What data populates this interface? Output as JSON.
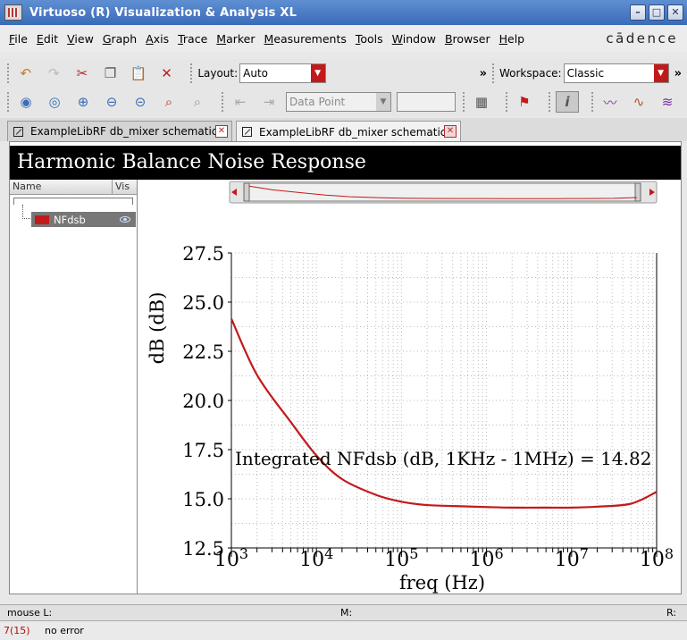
{
  "window": {
    "title": "Virtuoso (R) Visualization & Analysis XL",
    "brand": "cādence"
  },
  "menu": [
    "File",
    "Edit",
    "View",
    "Graph",
    "Axis",
    "Trace",
    "Marker",
    "Measurements",
    "Tools",
    "Window",
    "Browser",
    "Help"
  ],
  "toolbar1": {
    "layout_label": "Layout:",
    "layout_value": "Auto",
    "workspace_label": "Workspace:",
    "workspace_value": "Classic",
    "more_glyph": "»"
  },
  "toolbar2": {
    "marker_type_value": "Data Point"
  },
  "tabs": [
    {
      "label": "ExampleLibRF db_mixer schematic",
      "active": false
    },
    {
      "label": "ExampleLibRF db_mixer schematic",
      "active": true
    }
  ],
  "graph": {
    "title": "Harmonic Balance Noise Response",
    "legend_headers": {
      "name": "Name",
      "vis": "Vis"
    },
    "annotation": "Integrated NFdsb (dB, 1KHz - 1MHz) = 14.82"
  },
  "chart_data": {
    "type": "line",
    "title": "Harmonic Balance Noise Response",
    "xlabel": "freq (Hz)",
    "ylabel": "dB (dB)",
    "x_scale": "log",
    "xlim": [
      1000,
      100000000
    ],
    "ylim": [
      12.5,
      27.5
    ],
    "x_tick_labels": [
      {
        "base": "10",
        "exp": "3"
      },
      {
        "base": "10",
        "exp": "4"
      },
      {
        "base": "10",
        "exp": "5"
      },
      {
        "base": "10",
        "exp": "6"
      },
      {
        "base": "10",
        "exp": "7"
      },
      {
        "base": "10",
        "exp": "8"
      }
    ],
    "y_tick_labels": [
      "27.5",
      "25.0",
      "22.5",
      "20.0",
      "17.5",
      "15.0",
      "12.5"
    ],
    "grid": true,
    "series": [
      {
        "name": "NFdsb",
        "color": "#c21a1a",
        "x": [
          1000,
          2000,
          5000,
          10000,
          20000,
          50000,
          100000,
          200000,
          500000,
          1000000,
          2000000,
          5000000,
          10000000,
          20000000,
          50000000,
          100000000
        ],
        "y": [
          24.15,
          21.3,
          18.9,
          17.2,
          16.0,
          15.2,
          14.85,
          14.68,
          14.62,
          14.58,
          14.55,
          14.55,
          14.55,
          14.6,
          14.75,
          15.35
        ]
      }
    ]
  },
  "status": {
    "mouse_l": "mouse L:",
    "mouse_m": "M:",
    "mouse_r": "R:",
    "counter": "7(15)",
    "message": "no error"
  },
  "colors": {
    "accent": "#c21a1a",
    "titlebar": "#3a6bb8"
  }
}
